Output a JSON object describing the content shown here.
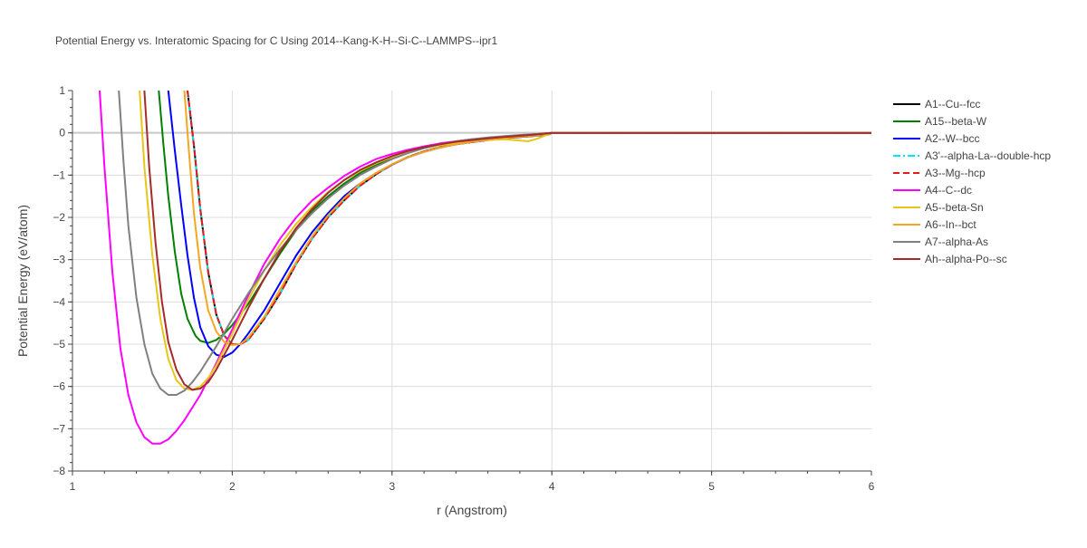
{
  "chart_data": {
    "type": "line",
    "title": "Potential Energy vs. Interatomic Spacing for C Using 2014--Kang-K-H--Si-C--LAMMPS--ipr1",
    "xlabel": "r (Angstrom)",
    "ylabel": "Potential Energy (eV/atom)",
    "xlim": [
      1,
      6
    ],
    "ylim": [
      -8,
      1
    ],
    "x_ticks": [
      "1",
      "2",
      "3",
      "4",
      "5",
      "6"
    ],
    "y_ticks": [
      "1",
      "0",
      "−1",
      "−2",
      "−3",
      "−4",
      "−5",
      "−6",
      "−7",
      "−8"
    ],
    "grid": true,
    "legend_position": "top-right",
    "series": [
      {
        "name": "A1--Cu--fcc",
        "color": "#000000",
        "dash": "solid",
        "x": [
          1.72,
          1.76,
          1.8,
          1.85,
          1.9,
          1.95,
          2.0,
          2.05,
          2.1,
          2.2,
          2.3,
          2.4,
          2.5,
          2.6,
          2.7,
          2.8,
          2.9,
          3.0,
          3.1,
          3.2,
          3.3,
          3.4,
          3.5,
          3.6,
          3.7,
          3.8,
          3.9,
          3.98,
          4.0,
          4.5,
          5.0,
          5.5,
          6.0
        ],
        "y": [
          1.0,
          -0.3,
          -1.8,
          -3.3,
          -4.3,
          -4.8,
          -5.0,
          -5.0,
          -4.9,
          -4.4,
          -3.8,
          -3.1,
          -2.5,
          -2.0,
          -1.6,
          -1.25,
          -0.98,
          -0.75,
          -0.57,
          -0.44,
          -0.34,
          -0.27,
          -0.22,
          -0.17,
          -0.13,
          -0.1,
          -0.07,
          -0.04,
          0,
          0,
          0,
          0,
          0
        ]
      },
      {
        "name": "A15--beta-W",
        "color": "#008000",
        "dash": "solid",
        "x": [
          1.54,
          1.57,
          1.6,
          1.64,
          1.68,
          1.72,
          1.77,
          1.8,
          1.85,
          1.9,
          1.95,
          2.0,
          2.1,
          2.2,
          2.3,
          2.4,
          2.5,
          2.6,
          2.7,
          2.8,
          2.9,
          3.0,
          3.1,
          3.2,
          3.3,
          3.4,
          3.5,
          3.6,
          3.7,
          3.8,
          3.9,
          4.0,
          4.5,
          5.0,
          5.5,
          6.0
        ],
        "y": [
          1.0,
          -0.3,
          -1.5,
          -2.8,
          -3.8,
          -4.4,
          -4.8,
          -4.92,
          -4.97,
          -4.9,
          -4.75,
          -4.55,
          -4.05,
          -3.45,
          -2.85,
          -2.3,
          -1.85,
          -1.5,
          -1.2,
          -0.95,
          -0.75,
          -0.6,
          -0.47,
          -0.36,
          -0.28,
          -0.21,
          -0.16,
          -0.12,
          -0.09,
          -0.06,
          -0.03,
          0,
          0,
          0,
          0,
          0
        ]
      },
      {
        "name": "A2--W--bcc",
        "color": "#0000ff",
        "dash": "solid",
        "x": [
          1.6,
          1.64,
          1.68,
          1.72,
          1.76,
          1.8,
          1.85,
          1.9,
          1.95,
          2.0,
          2.05,
          2.1,
          2.2,
          2.3,
          2.4,
          2.5,
          2.6,
          2.7,
          2.8,
          2.9,
          3.0,
          3.1,
          3.2,
          3.3,
          3.4,
          3.5,
          3.6,
          3.7,
          3.8,
          3.9,
          4.0,
          4.5,
          5.0,
          5.5,
          6.0
        ],
        "y": [
          1.0,
          -0.4,
          -1.7,
          -2.9,
          -3.9,
          -4.6,
          -5.05,
          -5.25,
          -5.3,
          -5.2,
          -5.0,
          -4.75,
          -4.2,
          -3.55,
          -2.9,
          -2.35,
          -1.9,
          -1.5,
          -1.2,
          -0.95,
          -0.75,
          -0.58,
          -0.45,
          -0.35,
          -0.27,
          -0.2,
          -0.15,
          -0.11,
          -0.08,
          -0.05,
          0,
          0,
          0,
          0,
          0
        ]
      },
      {
        "name": "A3'--alpha-La--double-hcp",
        "color": "#00e5ee",
        "dash": "dashdot",
        "x": [
          1.72,
          1.76,
          1.8,
          1.85,
          1.9,
          1.95,
          2.0,
          2.05,
          2.1,
          2.2,
          2.3,
          2.4,
          2.5,
          2.6,
          2.7,
          2.8,
          2.9,
          3.0,
          3.1,
          3.2,
          3.3,
          3.4,
          3.5,
          3.6,
          3.7,
          3.8,
          3.9,
          3.98,
          4.0,
          4.5,
          5.0,
          5.5,
          6.0
        ],
        "y": [
          1.0,
          -0.3,
          -1.8,
          -3.3,
          -4.3,
          -4.8,
          -5.0,
          -5.0,
          -4.9,
          -4.4,
          -3.8,
          -3.1,
          -2.5,
          -2.0,
          -1.6,
          -1.25,
          -0.98,
          -0.75,
          -0.57,
          -0.44,
          -0.34,
          -0.27,
          -0.22,
          -0.17,
          -0.13,
          -0.1,
          -0.07,
          -0.04,
          0,
          0,
          0,
          0,
          0
        ]
      },
      {
        "name": "A3--Mg--hcp",
        "color": "#e41a1c",
        "dash": "dash",
        "x": [
          1.72,
          1.76,
          1.8,
          1.85,
          1.9,
          1.95,
          2.0,
          2.05,
          2.1,
          2.2,
          2.3,
          2.4,
          2.5,
          2.6,
          2.7,
          2.8,
          2.9,
          3.0,
          3.1,
          3.2,
          3.3,
          3.4,
          3.5,
          3.6,
          3.7,
          3.8,
          3.9,
          3.98,
          4.0,
          4.5,
          5.0,
          5.5,
          6.0
        ],
        "y": [
          1.0,
          -0.3,
          -1.8,
          -3.3,
          -4.3,
          -4.8,
          -5.0,
          -5.0,
          -4.9,
          -4.4,
          -3.8,
          -3.1,
          -2.5,
          -2.0,
          -1.6,
          -1.25,
          -0.98,
          -0.75,
          -0.57,
          -0.44,
          -0.34,
          -0.27,
          -0.22,
          -0.17,
          -0.13,
          -0.1,
          -0.07,
          -0.04,
          0,
          0,
          0,
          0,
          0
        ]
      },
      {
        "name": "A4--C--dc",
        "color": "#ff00ff",
        "dash": "solid",
        "x": [
          1.17,
          1.2,
          1.25,
          1.3,
          1.35,
          1.4,
          1.45,
          1.5,
          1.55,
          1.6,
          1.65,
          1.7,
          1.8,
          1.9,
          2.0,
          2.1,
          2.2,
          2.3,
          2.4,
          2.5,
          2.6,
          2.7,
          2.8,
          2.9,
          3.0,
          3.1,
          3.2,
          3.3,
          3.4,
          3.5,
          3.6,
          3.7,
          3.8,
          3.9,
          4.0,
          4.5,
          5.0,
          5.5,
          6.0
        ],
        "y": [
          1.0,
          -0.8,
          -3.3,
          -5.1,
          -6.2,
          -6.85,
          -7.2,
          -7.35,
          -7.35,
          -7.25,
          -7.05,
          -6.8,
          -6.2,
          -5.45,
          -4.65,
          -3.85,
          -3.1,
          -2.5,
          -2.0,
          -1.6,
          -1.3,
          -1.02,
          -0.8,
          -0.62,
          -0.5,
          -0.4,
          -0.32,
          -0.25,
          -0.2,
          -0.15,
          -0.12,
          -0.09,
          -0.07,
          -0.04,
          0,
          0,
          0,
          0,
          0
        ]
      },
      {
        "name": "A5--beta-Sn",
        "color": "#e6c619",
        "dash": "solid",
        "x": [
          1.42,
          1.45,
          1.5,
          1.55,
          1.6,
          1.65,
          1.7,
          1.75,
          1.8,
          1.85,
          1.9,
          2.0,
          2.1,
          2.2,
          2.3,
          2.4,
          2.5,
          2.6,
          2.7,
          2.8,
          2.9,
          3.0,
          3.1,
          3.2,
          3.3,
          3.4,
          3.5,
          3.6,
          3.7,
          3.8,
          3.85,
          3.9,
          4.0,
          4.5,
          5.0,
          5.5,
          6.0
        ],
        "y": [
          1.0,
          -0.8,
          -2.9,
          -4.4,
          -5.35,
          -5.85,
          -6.05,
          -6.08,
          -6.0,
          -5.8,
          -5.5,
          -4.75,
          -3.95,
          -3.25,
          -2.65,
          -2.15,
          -1.75,
          -1.4,
          -1.12,
          -0.9,
          -0.72,
          -0.57,
          -0.45,
          -0.36,
          -0.29,
          -0.24,
          -0.2,
          -0.17,
          -0.15,
          -0.18,
          -0.2,
          -0.15,
          0,
          0,
          0,
          0,
          0
        ]
      },
      {
        "name": "A6--In--bct",
        "color": "#f5a623",
        "dash": "solid",
        "x": [
          1.7,
          1.73,
          1.76,
          1.8,
          1.85,
          1.9,
          1.95,
          2.0,
          2.05,
          2.1,
          2.2,
          2.3,
          2.4,
          2.5,
          2.6,
          2.7,
          2.8,
          2.9,
          3.0,
          3.1,
          3.2,
          3.3,
          3.4,
          3.5,
          3.6,
          3.7,
          3.8,
          3.9,
          4.0,
          4.5,
          5.0,
          5.5,
          6.0
        ],
        "y": [
          1.0,
          -0.5,
          -1.9,
          -3.2,
          -4.2,
          -4.7,
          -4.95,
          -5.02,
          -5.0,
          -4.85,
          -4.35,
          -3.7,
          -3.05,
          -2.45,
          -1.95,
          -1.55,
          -1.2,
          -0.95,
          -0.74,
          -0.58,
          -0.45,
          -0.35,
          -0.27,
          -0.21,
          -0.16,
          -0.12,
          -0.09,
          -0.06,
          0,
          0,
          0,
          0,
          0
        ]
      },
      {
        "name": "A7--alpha-As",
        "color": "#808080",
        "dash": "solid",
        "x": [
          1.29,
          1.32,
          1.35,
          1.4,
          1.45,
          1.5,
          1.55,
          1.6,
          1.65,
          1.7,
          1.75,
          1.8,
          1.9,
          2.0,
          2.1,
          2.2,
          2.3,
          2.4,
          2.5,
          2.6,
          2.7,
          2.8,
          2.9,
          3.0,
          3.1,
          3.2,
          3.3,
          3.4,
          3.5,
          3.6,
          3.7,
          3.8,
          3.9,
          4.0,
          4.5,
          5.0,
          5.5,
          6.0
        ],
        "y": [
          1.0,
          -0.7,
          -2.2,
          -3.9,
          -5.0,
          -5.7,
          -6.05,
          -6.2,
          -6.2,
          -6.1,
          -5.9,
          -5.65,
          -5.05,
          -4.4,
          -3.8,
          -3.25,
          -2.75,
          -2.3,
          -1.9,
          -1.55,
          -1.25,
          -1.0,
          -0.8,
          -0.62,
          -0.48,
          -0.36,
          -0.27,
          -0.2,
          -0.15,
          -0.11,
          -0.08,
          -0.05,
          -0.03,
          0,
          0,
          0,
          0,
          0
        ]
      },
      {
        "name": "Ah--alpha-Po--sc",
        "color": "#a52a2a",
        "dash": "solid",
        "x": [
          1.45,
          1.48,
          1.52,
          1.56,
          1.6,
          1.65,
          1.7,
          1.75,
          1.8,
          1.85,
          1.9,
          2.0,
          2.1,
          2.2,
          2.3,
          2.4,
          2.5,
          2.6,
          2.7,
          2.8,
          2.9,
          3.0,
          3.1,
          3.2,
          3.3,
          3.4,
          3.5,
          3.6,
          3.7,
          3.8,
          3.9,
          4.0,
          4.5,
          5.0,
          5.5,
          6.0
        ],
        "y": [
          1.0,
          -0.8,
          -2.6,
          -4.0,
          -4.95,
          -5.6,
          -5.95,
          -6.08,
          -6.05,
          -5.9,
          -5.6,
          -4.9,
          -4.15,
          -3.45,
          -2.8,
          -2.25,
          -1.8,
          -1.42,
          -1.12,
          -0.88,
          -0.7,
          -0.55,
          -0.43,
          -0.34,
          -0.27,
          -0.21,
          -0.17,
          -0.13,
          -0.1,
          -0.07,
          -0.04,
          0,
          0,
          0,
          0,
          0
        ]
      }
    ]
  }
}
